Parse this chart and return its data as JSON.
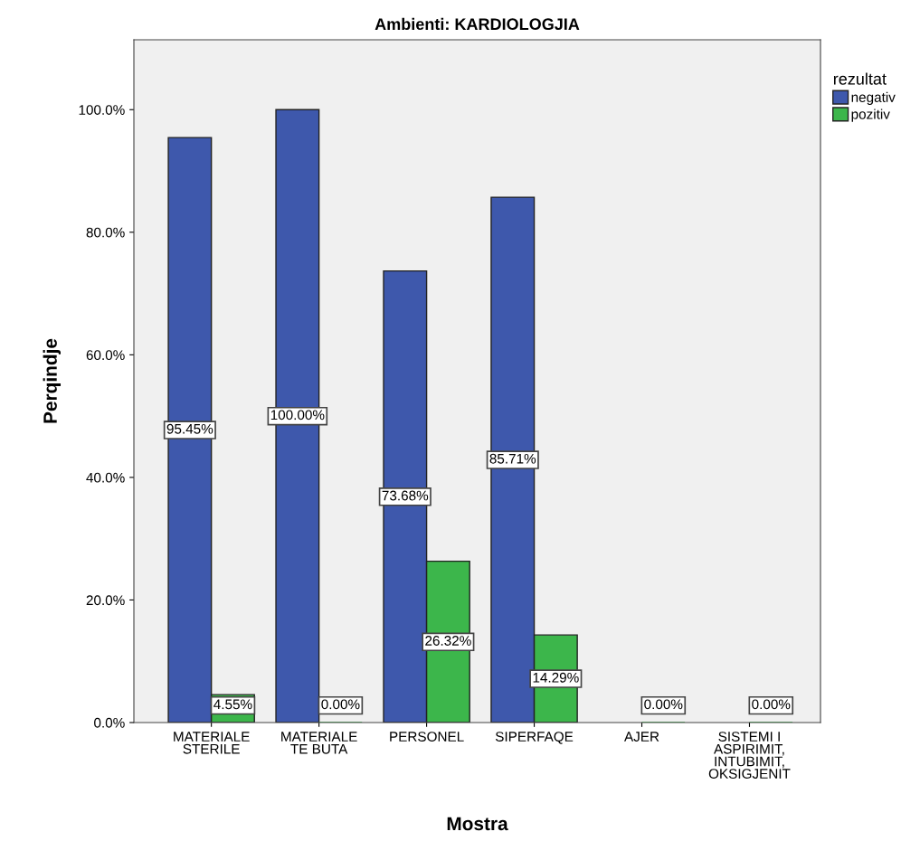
{
  "chart_data": {
    "type": "bar",
    "title": "Ambienti: KARDIOLOGJIA",
    "xlabel": "Mostra",
    "ylabel": "Perqindje",
    "legend_title": "rezultat",
    "categories": [
      "MATERIALE\nSTERILE",
      "MATERIALE\nTE BUTA",
      "PERSONEL",
      "SIPERFAQE",
      "AJER",
      "SISTEMI I\nASPIRIMIT,\nINTUBIMIT,\nOKSIGJENIT"
    ],
    "series": [
      {
        "name": "negativ",
        "color": "#3e58ac",
        "values": [
          95.45,
          100,
          73.68,
          85.71,
          null,
          null
        ],
        "value_labels": [
          "95.45%",
          "100.00%",
          "73.68%",
          "85.71%",
          null,
          null
        ]
      },
      {
        "name": "pozitiv",
        "color": "#3cb64b",
        "values": [
          4.55,
          0,
          26.32,
          14.29,
          0,
          0
        ],
        "value_labels": [
          "4.55%",
          "0.00%",
          "26.32%",
          "14.29%",
          "0.00%",
          "0.00%"
        ]
      }
    ],
    "ylim": [
      0,
      111.4
    ],
    "yticks": [
      {
        "value": 0,
        "label": "0.0%"
      },
      {
        "value": 20,
        "label": "20.0%"
      },
      {
        "value": 40,
        "label": "40.0%"
      },
      {
        "value": 60,
        "label": "60.0%"
      },
      {
        "value": 80,
        "label": "80.0%"
      },
      {
        "value": 100,
        "label": "100.0%"
      }
    ],
    "grid": false,
    "legend": "top right"
  }
}
